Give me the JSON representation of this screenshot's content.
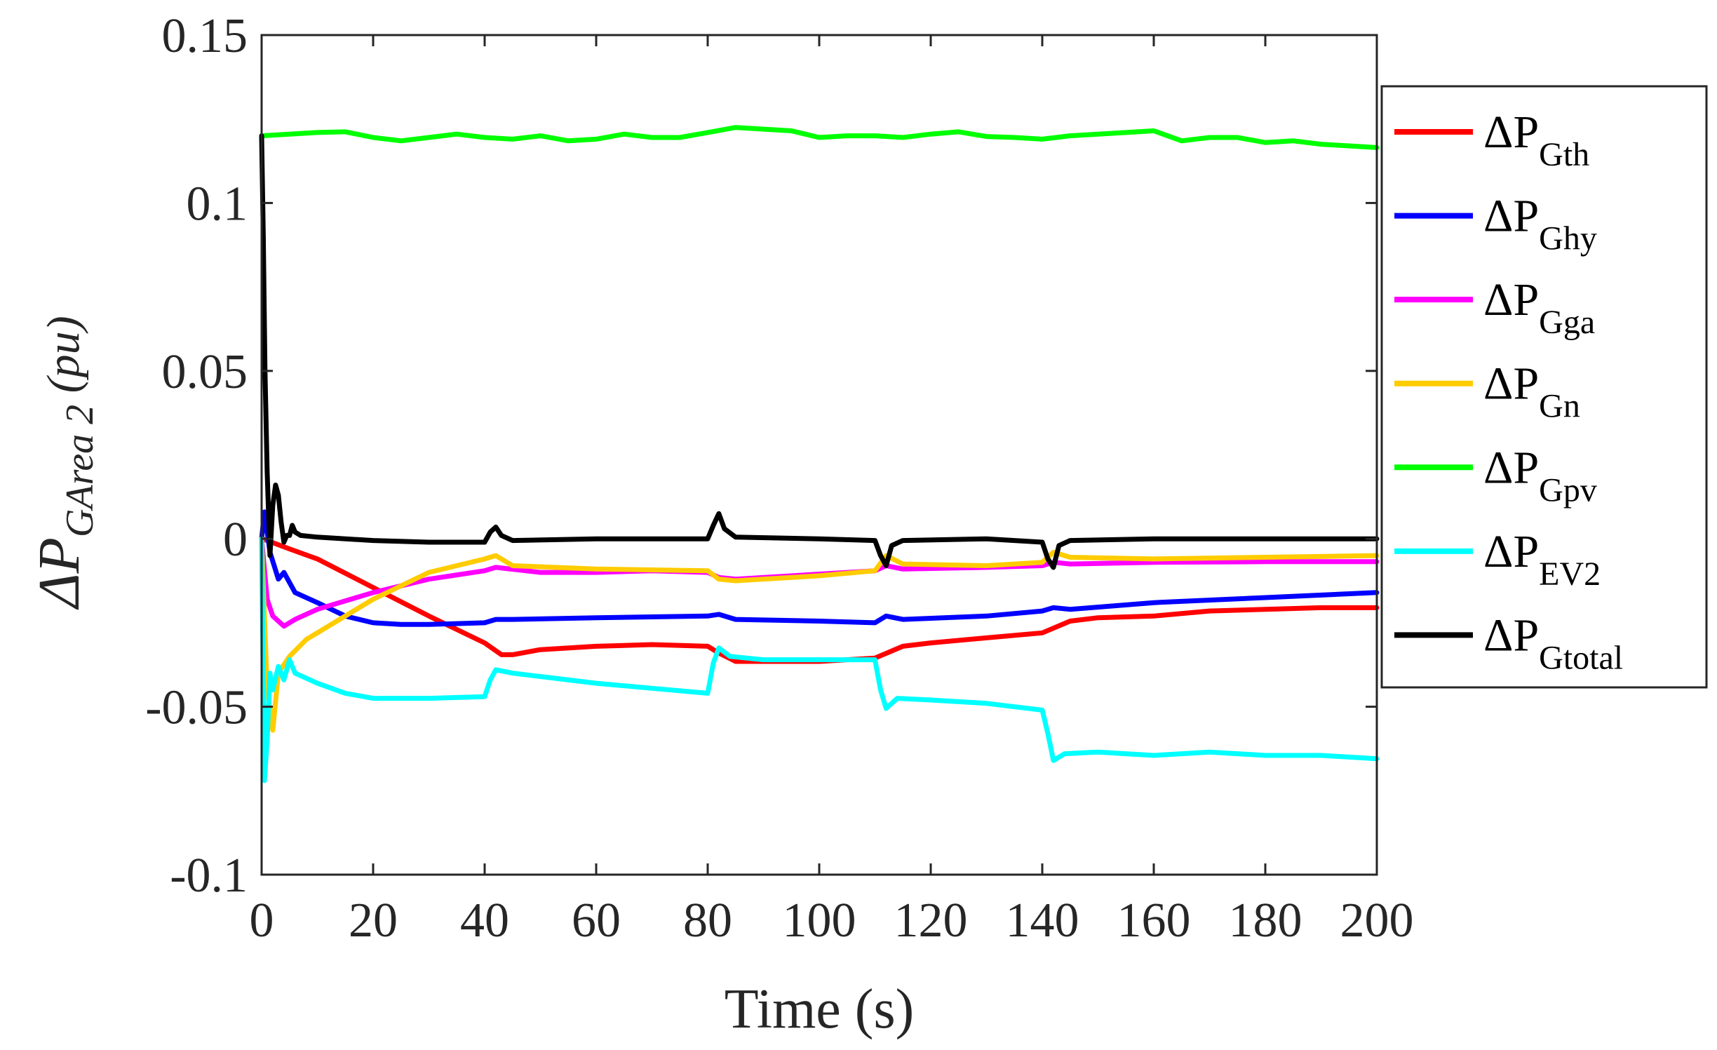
{
  "chart_data": {
    "type": "line",
    "title": "",
    "xlabel": "Time (s)",
    "ylabel": {
      "prefix": "ΔP",
      "subscript": "GArea 2",
      "unit": " (pu)"
    },
    "xlim": [
      0,
      200
    ],
    "ylim": [
      -0.1,
      0.15
    ],
    "xticks": [
      0,
      20,
      40,
      60,
      80,
      100,
      120,
      140,
      160,
      180,
      200
    ],
    "yticks": [
      -0.1,
      -0.05,
      0,
      0.05,
      0.1,
      0.15
    ],
    "ytick_labels": [
      "-0.1",
      "-0.05",
      "0",
      "0.05",
      "0.1",
      "0.15"
    ],
    "grid": false,
    "legend_position": "right-outside",
    "series": [
      {
        "name": "ΔP_Gth",
        "label_main": "ΔP",
        "label_sub": "Gth",
        "color": "#ff0000",
        "points": [
          [
            0,
            0
          ],
          [
            1,
            -0.0005
          ],
          [
            5,
            -0.003
          ],
          [
            10,
            -0.006
          ],
          [
            20,
            -0.0145
          ],
          [
            30,
            -0.023
          ],
          [
            40,
            -0.031
          ],
          [
            43,
            -0.0345
          ],
          [
            45,
            -0.0345
          ],
          [
            50,
            -0.033
          ],
          [
            60,
            -0.032
          ],
          [
            70,
            -0.0315
          ],
          [
            80,
            -0.032
          ],
          [
            82,
            -0.034
          ],
          [
            85,
            -0.0365
          ],
          [
            90,
            -0.0365
          ],
          [
            100,
            -0.0365
          ],
          [
            110,
            -0.0355
          ],
          [
            115,
            -0.032
          ],
          [
            120,
            -0.031
          ],
          [
            130,
            -0.0295
          ],
          [
            140,
            -0.028
          ],
          [
            145,
            -0.0245
          ],
          [
            150,
            -0.0235
          ],
          [
            160,
            -0.023
          ],
          [
            170,
            -0.0215
          ],
          [
            180,
            -0.021
          ],
          [
            190,
            -0.0205
          ],
          [
            200,
            -0.0205
          ]
        ]
      },
      {
        "name": "ΔP_Ghy",
        "label_main": "ΔP",
        "label_sub": "Ghy",
        "color": "#0000ff",
        "points": [
          [
            0,
            0
          ],
          [
            0.5,
            0.008
          ],
          [
            1.5,
            -0.004
          ],
          [
            3,
            -0.012
          ],
          [
            4,
            -0.01
          ],
          [
            6,
            -0.016
          ],
          [
            10,
            -0.019
          ],
          [
            15,
            -0.023
          ],
          [
            20,
            -0.025
          ],
          [
            25,
            -0.0255
          ],
          [
            30,
            -0.0255
          ],
          [
            40,
            -0.025
          ],
          [
            42,
            -0.024
          ],
          [
            45,
            -0.024
          ],
          [
            60,
            -0.0235
          ],
          [
            80,
            -0.023
          ],
          [
            82,
            -0.0225
          ],
          [
            85,
            -0.024
          ],
          [
            100,
            -0.0245
          ],
          [
            110,
            -0.025
          ],
          [
            112,
            -0.023
          ],
          [
            115,
            -0.024
          ],
          [
            130,
            -0.023
          ],
          [
            140,
            -0.0215
          ],
          [
            142,
            -0.0205
          ],
          [
            145,
            -0.021
          ],
          [
            160,
            -0.019
          ],
          [
            180,
            -0.0175
          ],
          [
            200,
            -0.016
          ]
        ]
      },
      {
        "name": "ΔP_Gga",
        "label_main": "ΔP",
        "label_sub": "Gga",
        "color": "#ff00ff",
        "points": [
          [
            0,
            0
          ],
          [
            1,
            -0.018
          ],
          [
            2,
            -0.023
          ],
          [
            4,
            -0.026
          ],
          [
            6,
            -0.024
          ],
          [
            10,
            -0.021
          ],
          [
            20,
            -0.016
          ],
          [
            30,
            -0.012
          ],
          [
            40,
            -0.0095
          ],
          [
            42,
            -0.0085
          ],
          [
            50,
            -0.01
          ],
          [
            60,
            -0.01
          ],
          [
            70,
            -0.0095
          ],
          [
            80,
            -0.01
          ],
          [
            82,
            -0.0115
          ],
          [
            85,
            -0.012
          ],
          [
            100,
            -0.0105
          ],
          [
            110,
            -0.0095
          ],
          [
            112,
            -0.008
          ],
          [
            115,
            -0.009
          ],
          [
            130,
            -0.0085
          ],
          [
            140,
            -0.008
          ],
          [
            142,
            -0.007
          ],
          [
            145,
            -0.0075
          ],
          [
            160,
            -0.007
          ],
          [
            180,
            -0.0068
          ],
          [
            200,
            -0.0068
          ]
        ]
      },
      {
        "name": "ΔP_Gn",
        "label_main": "ΔP",
        "label_sub": "Gn",
        "color": "#ffcc00",
        "points": [
          [
            0,
            0
          ],
          [
            1,
            -0.045
          ],
          [
            2,
            -0.057
          ],
          [
            3,
            -0.04
          ],
          [
            5,
            -0.035
          ],
          [
            8,
            -0.03
          ],
          [
            15,
            -0.023
          ],
          [
            20,
            -0.018
          ],
          [
            30,
            -0.01
          ],
          [
            40,
            -0.006
          ],
          [
            42,
            -0.005
          ],
          [
            45,
            -0.008
          ],
          [
            60,
            -0.009
          ],
          [
            80,
            -0.0095
          ],
          [
            82,
            -0.012
          ],
          [
            85,
            -0.0125
          ],
          [
            100,
            -0.011
          ],
          [
            110,
            -0.0095
          ],
          [
            112,
            -0.005
          ],
          [
            115,
            -0.0075
          ],
          [
            130,
            -0.008
          ],
          [
            140,
            -0.007
          ],
          [
            142,
            -0.004
          ],
          [
            145,
            -0.0055
          ],
          [
            160,
            -0.006
          ],
          [
            180,
            -0.0055
          ],
          [
            200,
            -0.005
          ]
        ]
      },
      {
        "name": "ΔP_Gpv",
        "label_main": "ΔP",
        "label_sub": "Gpv",
        "color": "#00ff00",
        "points": [
          [
            0,
            0.12
          ],
          [
            5,
            0.1205
          ],
          [
            10,
            0.121
          ],
          [
            15,
            0.1212
          ],
          [
            20,
            0.1195
          ],
          [
            25,
            0.1185
          ],
          [
            30,
            0.1195
          ],
          [
            35,
            0.1205
          ],
          [
            40,
            0.1195
          ],
          [
            45,
            0.119
          ],
          [
            50,
            0.12
          ],
          [
            55,
            0.1185
          ],
          [
            60,
            0.119
          ],
          [
            65,
            0.1205
          ],
          [
            70,
            0.1195
          ],
          [
            75,
            0.1195
          ],
          [
            80,
            0.121
          ],
          [
            85,
            0.1225
          ],
          [
            90,
            0.122
          ],
          [
            95,
            0.1215
          ],
          [
            100,
            0.1195
          ],
          [
            105,
            0.12
          ],
          [
            110,
            0.12
          ],
          [
            115,
            0.1195
          ],
          [
            120,
            0.1205
          ],
          [
            125,
            0.1212
          ],
          [
            130,
            0.1198
          ],
          [
            135,
            0.1195
          ],
          [
            140,
            0.119
          ],
          [
            145,
            0.12
          ],
          [
            150,
            0.1205
          ],
          [
            155,
            0.121
          ],
          [
            160,
            0.1215
          ],
          [
            165,
            0.1185
          ],
          [
            170,
            0.1195
          ],
          [
            175,
            0.1195
          ],
          [
            180,
            0.118
          ],
          [
            185,
            0.1185
          ],
          [
            190,
            0.1175
          ],
          [
            195,
            0.117
          ],
          [
            200,
            0.1165
          ]
        ]
      },
      {
        "name": "ΔP_EV2",
        "label_main": "ΔP",
        "label_sub": "EV2",
        "color": "#00ffff",
        "points": [
          [
            0,
            0
          ],
          [
            0.5,
            -0.072
          ],
          [
            1,
            -0.06
          ],
          [
            1.5,
            -0.04
          ],
          [
            2,
            -0.045
          ],
          [
            3,
            -0.038
          ],
          [
            4,
            -0.042
          ],
          [
            5,
            -0.036
          ],
          [
            6,
            -0.04
          ],
          [
            10,
            -0.043
          ],
          [
            15,
            -0.046
          ],
          [
            20,
            -0.0475
          ],
          [
            30,
            -0.0475
          ],
          [
            40,
            -0.047
          ],
          [
            41,
            -0.042
          ],
          [
            42,
            -0.039
          ],
          [
            45,
            -0.04
          ],
          [
            50,
            -0.041
          ],
          [
            60,
            -0.043
          ],
          [
            70,
            -0.0445
          ],
          [
            80,
            -0.046
          ],
          [
            81,
            -0.037
          ],
          [
            82,
            -0.0325
          ],
          [
            84,
            -0.035
          ],
          [
            90,
            -0.036
          ],
          [
            100,
            -0.036
          ],
          [
            110,
            -0.036
          ],
          [
            111,
            -0.045
          ],
          [
            112,
            -0.0505
          ],
          [
            114,
            -0.0475
          ],
          [
            120,
            -0.048
          ],
          [
            130,
            -0.049
          ],
          [
            140,
            -0.051
          ],
          [
            141,
            -0.058
          ],
          [
            142,
            -0.066
          ],
          [
            144,
            -0.064
          ],
          [
            150,
            -0.0635
          ],
          [
            160,
            -0.0645
          ],
          [
            170,
            -0.0635
          ],
          [
            180,
            -0.0645
          ],
          [
            190,
            -0.0645
          ],
          [
            200,
            -0.0655
          ]
        ]
      },
      {
        "name": "ΔP_Gtotal",
        "label_main": "ΔP",
        "label_sub": "Gtotal",
        "color": "#000000",
        "points": [
          [
            0,
            0.12
          ],
          [
            0.3,
            0.09
          ],
          [
            0.6,
            0.05
          ],
          [
            1,
            0.02
          ],
          [
            1.5,
            -0.005
          ],
          [
            2,
            0.01
          ],
          [
            2.5,
            0.016
          ],
          [
            3,
            0.013
          ],
          [
            3.5,
            0.005
          ],
          [
            4,
            -0.001
          ],
          [
            4.5,
            0.001
          ],
          [
            5,
            0.001
          ],
          [
            5.5,
            0.004
          ],
          [
            6,
            0.002
          ],
          [
            7,
            0.001
          ],
          [
            10,
            0.0005
          ],
          [
            20,
            -0.0005
          ],
          [
            30,
            -0.001
          ],
          [
            40,
            -0.001
          ],
          [
            41,
            0.002
          ],
          [
            42,
            0.0035
          ],
          [
            43,
            0.001
          ],
          [
            45,
            -0.0005
          ],
          [
            60,
            0
          ],
          [
            80,
            0
          ],
          [
            81,
            0.004
          ],
          [
            82,
            0.0075
          ],
          [
            83,
            0.003
          ],
          [
            85,
            0.0005
          ],
          [
            100,
            0
          ],
          [
            110,
            -0.0005
          ],
          [
            111,
            -0.005
          ],
          [
            112,
            -0.008
          ],
          [
            113,
            -0.002
          ],
          [
            115,
            -0.0005
          ],
          [
            130,
            0
          ],
          [
            140,
            -0.001
          ],
          [
            141,
            -0.006
          ],
          [
            142,
            -0.0085
          ],
          [
            143,
            -0.002
          ],
          [
            145,
            -0.0005
          ],
          [
            160,
            0
          ],
          [
            180,
            0
          ],
          [
            200,
            0
          ]
        ]
      }
    ]
  }
}
